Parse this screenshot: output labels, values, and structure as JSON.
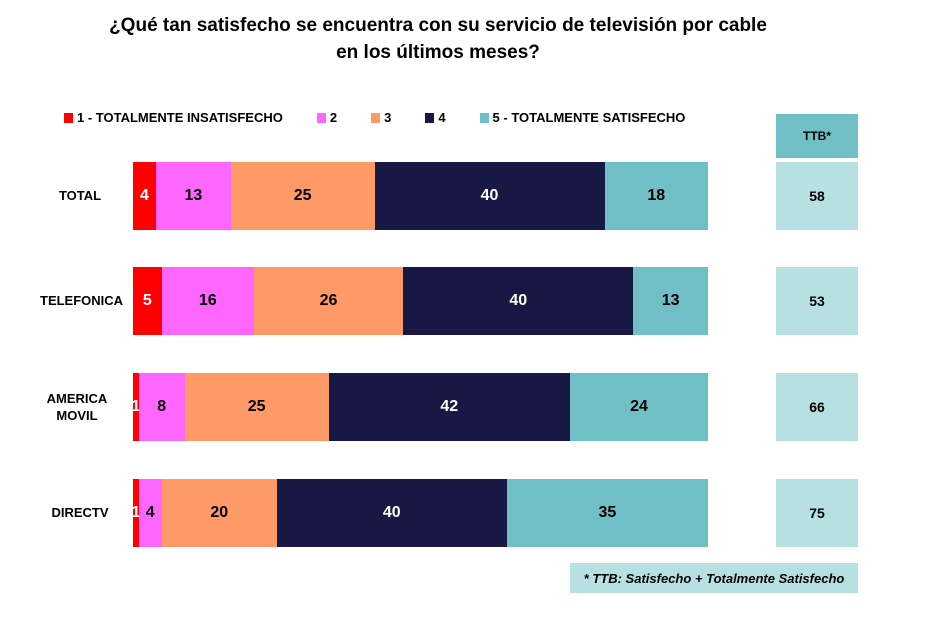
{
  "chart_data": {
    "type": "bar",
    "stacked": true,
    "orientation": "horizontal",
    "title_line1": "¿Qué tan satisfecho se encuentra con su servicio de televisión por cable",
    "title_line2": "en los últimos meses?",
    "categories": [
      "TOTAL",
      "TELEFONICA",
      "AMERICA MOVIL",
      "DIRECTV"
    ],
    "series": [
      {
        "name": "1 - TOTALMENTE INSATISFECHO",
        "color": "#ff0000",
        "text_color": "#ffffff",
        "values": [
          4,
          5,
          1,
          1
        ]
      },
      {
        "name": "2",
        "color": "#ff66ff",
        "text_color": "#000000",
        "values": [
          13,
          16,
          8,
          4
        ]
      },
      {
        "name": "3",
        "color": "#ff9966",
        "text_color": "#000000",
        "values": [
          25,
          26,
          25,
          20
        ]
      },
      {
        "name": "4",
        "color": "#181844",
        "text_color": "#ffffff",
        "values": [
          40,
          40,
          42,
          40
        ]
      },
      {
        "name": "5 - TOTALMENTE SATISFECHO",
        "color": "#71bfc6",
        "text_color": "#000000",
        "values": [
          18,
          13,
          24,
          35
        ]
      }
    ],
    "ttb": {
      "header": "TTB*",
      "values": [
        58,
        53,
        66,
        75
      ]
    },
    "footnote": "* TTB: Satisfecho + Totalmente Satisfecho",
    "legend_position": "top"
  }
}
